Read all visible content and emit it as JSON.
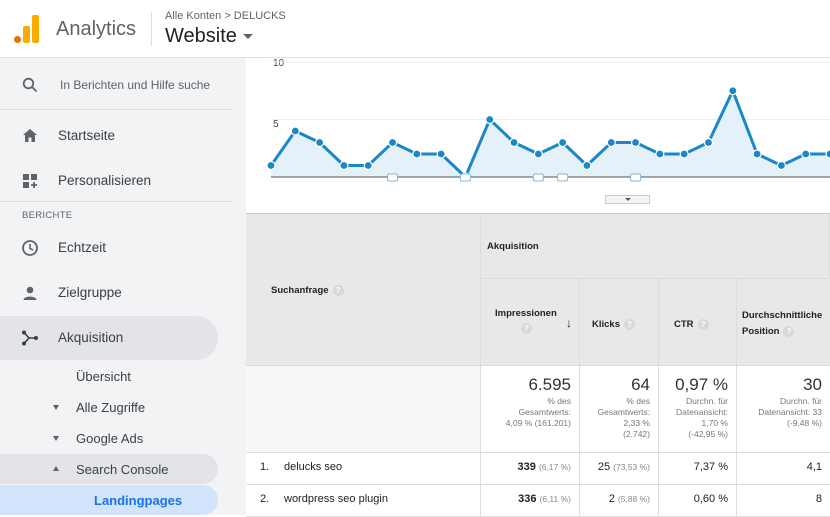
{
  "header": {
    "app_name": "Analytics",
    "breadcrumb": "Alle Konten > DELUCKS",
    "property": "Website"
  },
  "colors": {
    "accent": "#1a88c8",
    "logo_orange": "#f9ab00",
    "logo_dark_orange": "#e37400"
  },
  "sidebar": {
    "search_placeholder": "In Berichten und Hilfe suche",
    "items": [
      {
        "label": "Startseite",
        "icon": "home-icon"
      },
      {
        "label": "Personalisieren",
        "icon": "dashboard-icon"
      }
    ],
    "section_label": "BERICHTE",
    "reports": [
      {
        "label": "Echtzeit",
        "icon": "clock-icon"
      },
      {
        "label": "Zielgruppe",
        "icon": "person-icon"
      },
      {
        "label": "Akquisition",
        "icon": "acquisition-icon"
      }
    ],
    "sub_items": [
      {
        "label": "Übersicht"
      },
      {
        "label": "Alle Zugriffe"
      },
      {
        "label": "Google Ads"
      },
      {
        "label": "Search Console"
      },
      {
        "label": "Landingpages"
      }
    ]
  },
  "chart_data": {
    "type": "area",
    "y_ticks": [
      "10",
      "5"
    ],
    "ylim": [
      0,
      10
    ],
    "values": [
      1,
      4,
      3,
      1,
      1,
      3,
      2,
      2,
      0,
      5,
      3,
      2,
      3,
      1,
      3,
      3,
      2,
      2,
      3,
      7.5,
      2,
      1,
      2,
      2
    ],
    "annotation_indices": [
      5,
      8,
      11,
      12,
      15
    ]
  },
  "table": {
    "dimension_header": "Suchanfrage",
    "group_header": "Akquisition",
    "columns": [
      {
        "label": "Impressionen",
        "sort": "↓"
      },
      {
        "label": "Klicks"
      },
      {
        "label": "CTR"
      },
      {
        "label": "Durchschnittliche Position"
      }
    ],
    "summary": [
      {
        "value": "6.595",
        "line1": "% des",
        "line2": "Gesamtwerts:",
        "line3": "4,09 % (161.201)"
      },
      {
        "value": "64",
        "line1": "% des",
        "line2": "Gesamtwerts:",
        "line3": "2,33 %",
        "line4": "(2.742)"
      },
      {
        "value": "0,97 %",
        "line1": "Durchn. für",
        "line2": "Datenansicht:",
        "line3": "1,70 %",
        "line4": "(-42,95 %)"
      },
      {
        "value": "30",
        "line1": "Durchn. für",
        "line2": "Datenansicht: 33",
        "line3": "(-9,48 %)"
      }
    ],
    "rows": [
      {
        "idx": "1.",
        "query": "delucks seo",
        "impr": "339",
        "impr_pct": "(6,17 %)",
        "clicks": "25",
        "clicks_pct": "(73,53 %)",
        "ctr": "7,37 %",
        "pos": "4,1"
      },
      {
        "idx": "2.",
        "query": "wordpress seo plugin",
        "impr": "336",
        "impr_pct": "(6,11 %)",
        "clicks": "2",
        "clicks_pct": "(5,88 %)",
        "ctr": "0,60 %",
        "pos": "8"
      }
    ]
  }
}
